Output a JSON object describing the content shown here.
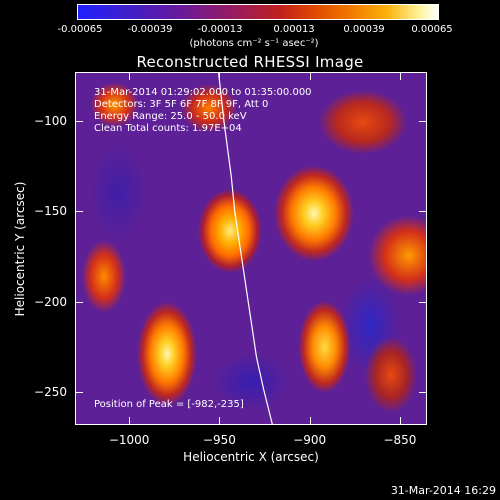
{
  "colorbar": {
    "ticks": [
      "-0.00065",
      "-0.00039",
      "-0.00013",
      "0.00013",
      "0.00039",
      "0.00065"
    ],
    "unit": "(photons cm⁻² s⁻¹ asec⁻²)"
  },
  "chart_data": {
    "type": "heatmap",
    "title": "Reconstructed RHESSI Image",
    "xlabel": "Heliocentric X (arcsec)",
    "ylabel": "Heliocentric Y (arcsec)",
    "xlim": [
      -1030,
      -835
    ],
    "ylim": [
      -268,
      -73
    ],
    "x_ticks": [
      -1000,
      -950,
      -900,
      -850
    ],
    "x_tick_labels": [
      "−1000",
      "−950",
      "−900",
      "−850"
    ],
    "y_ticks": [
      -100,
      -150,
      -200,
      -250
    ],
    "y_tick_labels": [
      "−100",
      "−150",
      "−200",
      "−250"
    ],
    "limb_curve": [
      [
        -951,
        -73
      ],
      [
        -948,
        -100
      ],
      [
        -944,
        -130
      ],
      [
        -942,
        -150
      ],
      [
        -939,
        -170
      ],
      [
        -936,
        -190
      ],
      [
        -933,
        -210
      ],
      [
        -930,
        -230
      ],
      [
        -926,
        -248
      ],
      [
        -921,
        -268
      ]
    ],
    "annotations": [
      "31-Mar-2014 01:29:02.000 to 01:35:00.000",
      "Detectors: 3F 5F 6F 7F 8F 9F, Att 0",
      "Energy Range: 25.0 - 50.0 keV",
      "Clean    Total counts: 1.97E+04"
    ],
    "peak_label": "Position of Peak = [-982,-235]",
    "colormap_range": [
      -0.00065,
      0.00065
    ]
  },
  "footer": {
    "timestamp": "31-Mar-2014 16:29"
  }
}
